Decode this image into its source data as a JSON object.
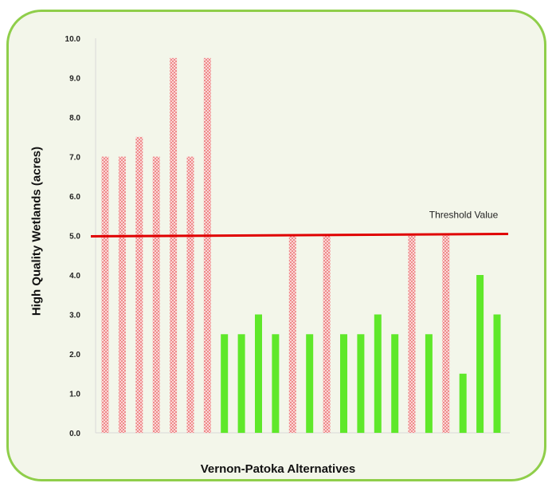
{
  "chart_data": {
    "type": "bar",
    "ylabel": "High Quality Wetlands (acres)",
    "xlabel": "Vernon-Patoka Alternatives",
    "ylim": [
      0,
      10
    ],
    "yticks": [
      "0.0",
      "1.0",
      "2.0",
      "3.0",
      "4.0",
      "5.0",
      "6.0",
      "7.0",
      "8.0",
      "9.0",
      "10.0"
    ],
    "values": [
      7.0,
      7.0,
      7.5,
      7.0,
      9.5,
      7.0,
      9.5,
      2.5,
      2.5,
      3.0,
      2.5,
      5.0,
      2.5,
      5.0,
      2.5,
      2.5,
      3.0,
      2.5,
      5.0,
      2.5,
      5.0,
      1.5,
      4.0,
      3.0
    ],
    "threshold": {
      "label": "Threshold Value",
      "value": 5.0
    },
    "grid": false,
    "colors": {
      "above_threshold": "#f4a3a3",
      "below_threshold": "#5fe82a",
      "threshold_line": "#e00000",
      "frame_border": "#8fce4a"
    }
  }
}
